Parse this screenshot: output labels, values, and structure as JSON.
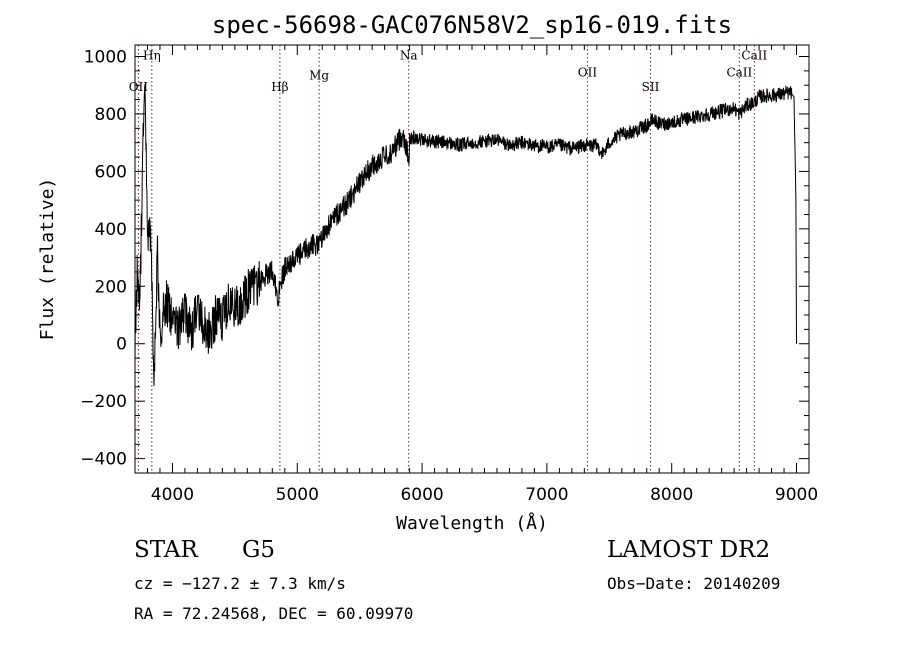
{
  "chart_data": {
    "type": "line",
    "title": "spec-56698-GAC076N58V2_sp16-019.fits",
    "xlabel": "Wavelength (Å)",
    "ylabel": "Flux (relative)",
    "xlim": [
      3700,
      9100
    ],
    "ylim": [
      -450,
      1040
    ],
    "xticks": [
      4000,
      5000,
      6000,
      7000,
      8000,
      9000
    ],
    "xtick_labels": [
      "4000",
      "5000",
      "6000",
      "7000",
      "8000",
      "9000"
    ],
    "yticks": [
      -400,
      -200,
      0,
      200,
      400,
      600,
      800,
      1000
    ],
    "ytick_labels": [
      "−400",
      "−200",
      "0",
      "200",
      "400",
      "600",
      "800",
      "1000"
    ],
    "x_minor_step": 100,
    "y_minor_step": 50,
    "grid": false,
    "series": [
      {
        "name": "flux",
        "color": "#000000",
        "noise_amplitude": 25,
        "x": [
          3700,
          3720,
          3740,
          3760,
          3780,
          3800,
          3830,
          3850,
          3880,
          3900,
          3950,
          4000,
          4050,
          4100,
          4150,
          4200,
          4250,
          4300,
          4350,
          4400,
          4450,
          4500,
          4600,
          4700,
          4800,
          4850,
          4860,
          4900,
          5000,
          5100,
          5180,
          5200,
          5300,
          5400,
          5500,
          5600,
          5700,
          5750,
          5800,
          5850,
          5893,
          5900,
          5950,
          6000,
          6100,
          6200,
          6300,
          6400,
          6500,
          6600,
          6700,
          6800,
          6900,
          7000,
          7100,
          7200,
          7300,
          7400,
          7450,
          7500,
          7600,
          7700,
          7800,
          7850,
          7900,
          8000,
          8100,
          8200,
          8300,
          8400,
          8500,
          8542,
          8600,
          8662,
          8700,
          8800,
          8900,
          8950,
          8980,
          8995,
          9000
        ],
        "y": [
          0,
          280,
          120,
          650,
          950,
          400,
          350,
          -150,
          300,
          50,
          150,
          80,
          60,
          100,
          40,
          120,
          60,
          30,
          100,
          80,
          140,
          120,
          180,
          220,
          260,
          150,
          210,
          260,
          300,
          340,
          350,
          380,
          440,
          490,
          560,
          620,
          650,
          660,
          700,
          730,
          640,
          710,
          720,
          710,
          705,
          700,
          690,
          700,
          705,
          710,
          690,
          700,
          690,
          685,
          690,
          680,
          690,
          690,
          660,
          700,
          730,
          740,
          760,
          780,
          765,
          770,
          780,
          790,
          800,
          810,
          820,
          800,
          830,
          840,
          860,
          865,
          870,
          875,
          860,
          500,
          0
        ]
      }
    ],
    "lines": [
      {
        "name": "OII",
        "x": 3727,
        "y_label": 880,
        "color": "#8b1a1a"
      },
      {
        "name": "Hη",
        "x": 3835,
        "y_label": 990,
        "color": "#8b1a1a"
      },
      {
        "name": "Hβ",
        "x": 4861,
        "y_label": 880,
        "color": "#8b1a1a"
      },
      {
        "name": "Mg",
        "x": 5175,
        "y_label": 920,
        "color": "#8b1a1a"
      },
      {
        "name": "Na",
        "x": 5893,
        "y_label": 990,
        "color": "#8b1a1a"
      },
      {
        "name": "OII",
        "x": 7325,
        "y_label": 930,
        "color": "#8b1a1a"
      },
      {
        "name": "SII",
        "x": 7830,
        "y_label": 880,
        "color": "#8b1a1a"
      },
      {
        "name": "CaII",
        "x": 8542,
        "y_label": 930,
        "color": "#8b1a1a"
      },
      {
        "name": "CaII",
        "x": 8662,
        "y_label": 990,
        "color": "#8b1a1a"
      }
    ]
  },
  "info": {
    "object_class": "STAR",
    "subclass": "G5",
    "survey": "LAMOST DR2",
    "cz": "cz = −127.2 ± 7.3 km/s",
    "obs_date": "Obs−Date: 20140209",
    "coords": "RA =  72.24568, DEC =  60.09970"
  }
}
